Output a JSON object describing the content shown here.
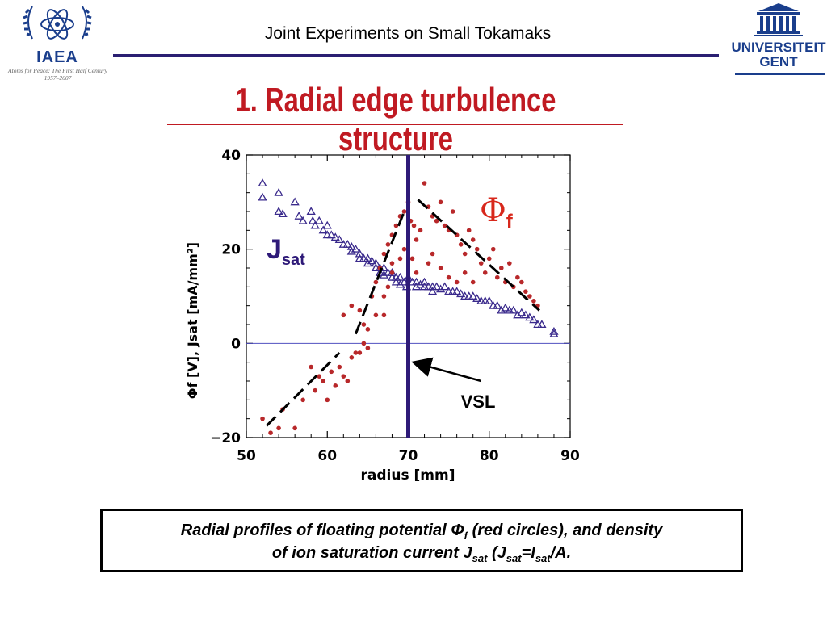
{
  "header": {
    "title": "Joint Experiments on Small Tokamaks",
    "iaea_logo": {
      "text": "IAEA",
      "tagline_line1": "Atoms for Peace: The First Half Century",
      "tagline_line2": "1957–2007",
      "color": "#1a3e8c"
    },
    "ugent_logo": {
      "line1": "UNIVERSITEIT",
      "line2": "GENT",
      "color": "#1a3e8c"
    },
    "rule_color": "#2a1f72"
  },
  "slide": {
    "title": "1. Radial edge turbulence structure",
    "title_color": "#c01a22"
  },
  "caption": {
    "line1_a": "Radial profiles of floating potential Φ",
    "line1_sub": "f",
    "line1_b": " (red circles), and density",
    "line2_a": "of ion saturation current J",
    "line2_sub1": "sat",
    "line2_b": " (J",
    "line2_sub2": "sat",
    "line2_c": "=I",
    "line2_sub3": "sat",
    "line2_d": "/A."
  },
  "chart_data": {
    "type": "scatter",
    "xlabel": "radius [mm]",
    "ylabel": "Φf [V], Jsat [mA/mm²]",
    "xlim": [
      50,
      90
    ],
    "ylim": [
      -20,
      40
    ],
    "xticks": [
      "50",
      "60",
      "70",
      "80",
      "90"
    ],
    "yticks": [
      "−20",
      "0",
      "20",
      "40"
    ],
    "grid": false,
    "zero_line_y": 0,
    "vsl_x": 70,
    "annotations": {
      "phi_label": "Φ",
      "phi_sub": "f",
      "phi_color": "#d8281c",
      "jsat_label": "J",
      "jsat_sub": "sat",
      "jsat_color": "#2e1a78",
      "vsl_label": "VSL",
      "vsl_arrow_tip": [
        70.6,
        -4
      ],
      "vsl_arrow_tail": [
        79,
        -8
      ]
    },
    "fit_lines": [
      {
        "x": [
          52.5,
          61.5
        ],
        "y": [
          -17.5,
          -2
        ]
      },
      {
        "x": [
          63.5,
          69.5
        ],
        "y": [
          2,
          28
        ]
      },
      {
        "x": [
          71.2,
          86.2
        ],
        "y": [
          30.5,
          7
        ]
      }
    ],
    "series": [
      {
        "name": "Jsat",
        "marker": "triangle-open",
        "color": "#3a2a8c",
        "points": [
          [
            52,
            34
          ],
          [
            52,
            31
          ],
          [
            54,
            32
          ],
          [
            54,
            28
          ],
          [
            54.5,
            27.5
          ],
          [
            56,
            30
          ],
          [
            56.5,
            27
          ],
          [
            57,
            26
          ],
          [
            58,
            28
          ],
          [
            58.2,
            26
          ],
          [
            58.5,
            25
          ],
          [
            59,
            26
          ],
          [
            59.5,
            24
          ],
          [
            60,
            25
          ],
          [
            60,
            23
          ],
          [
            60.5,
            23
          ],
          [
            61,
            22.5
          ],
          [
            61.5,
            22
          ],
          [
            62,
            21
          ],
          [
            62.5,
            21
          ],
          [
            63,
            20.5
          ],
          [
            63,
            19.5
          ],
          [
            63.5,
            20
          ],
          [
            64,
            19
          ],
          [
            64,
            18
          ],
          [
            64.5,
            18
          ],
          [
            65,
            18
          ],
          [
            65,
            17
          ],
          [
            65.5,
            17.5
          ],
          [
            66,
            17
          ],
          [
            66,
            16
          ],
          [
            66.5,
            16
          ],
          [
            66.5,
            15
          ],
          [
            67,
            16
          ],
          [
            67,
            14.5
          ],
          [
            67.5,
            15
          ],
          [
            68,
            15
          ],
          [
            68,
            14
          ],
          [
            68.5,
            14
          ],
          [
            68.5,
            13
          ],
          [
            69,
            14
          ],
          [
            69,
            12.5
          ],
          [
            69.5,
            13
          ],
          [
            69.8,
            12
          ],
          [
            70,
            14
          ],
          [
            70.5,
            13
          ],
          [
            71,
            13
          ],
          [
            71,
            12
          ],
          [
            71.5,
            12.5
          ],
          [
            72,
            13
          ],
          [
            72,
            12
          ],
          [
            72.5,
            12
          ],
          [
            73,
            12
          ],
          [
            73,
            11
          ],
          [
            73.5,
            12
          ],
          [
            74,
            11.5
          ],
          [
            74.5,
            12
          ],
          [
            75,
            11
          ],
          [
            75.5,
            11
          ],
          [
            76,
            11
          ],
          [
            76.5,
            10.5
          ],
          [
            77,
            10
          ],
          [
            77.5,
            10
          ],
          [
            78,
            10
          ],
          [
            78.5,
            9.5
          ],
          [
            79,
            9
          ],
          [
            79.5,
            9
          ],
          [
            80,
            9
          ],
          [
            80.5,
            8
          ],
          [
            81,
            8
          ],
          [
            81.5,
            7
          ],
          [
            82,
            7.5
          ],
          [
            82.5,
            7
          ],
          [
            83,
            7
          ],
          [
            83.5,
            6
          ],
          [
            84,
            6.5
          ],
          [
            84.5,
            6
          ],
          [
            85,
            5.5
          ],
          [
            85.5,
            5
          ],
          [
            86,
            4
          ],
          [
            86.5,
            4
          ],
          [
            88,
            2.5
          ],
          [
            88,
            2
          ]
        ]
      },
      {
        "name": "Φf",
        "marker": "circle-filled",
        "color": "#b8282a",
        "points": [
          [
            52,
            -16
          ],
          [
            53,
            -19
          ],
          [
            54,
            -18
          ],
          [
            54.5,
            -14
          ],
          [
            56,
            -18
          ],
          [
            57,
            -12
          ],
          [
            58,
            -5
          ],
          [
            58.5,
            -10
          ],
          [
            59,
            -7
          ],
          [
            59.5,
            -8
          ],
          [
            60,
            -12
          ],
          [
            60.5,
            -6
          ],
          [
            61,
            -9
          ],
          [
            61.5,
            -5
          ],
          [
            62,
            -7
          ],
          [
            62.5,
            -8
          ],
          [
            63,
            -3
          ],
          [
            63.5,
            -2
          ],
          [
            64,
            -2
          ],
          [
            64.5,
            0
          ],
          [
            65,
            -1
          ],
          [
            62,
            6
          ],
          [
            63,
            8
          ],
          [
            64,
            7
          ],
          [
            64.5,
            4
          ],
          [
            65,
            3
          ],
          [
            65.5,
            10
          ],
          [
            66,
            13
          ],
          [
            66.5,
            16
          ],
          [
            67,
            19
          ],
          [
            67.5,
            21
          ],
          [
            68,
            23
          ],
          [
            68.5,
            25
          ],
          [
            69,
            27
          ],
          [
            69.5,
            28
          ],
          [
            70,
            30
          ],
          [
            70.3,
            26
          ],
          [
            70.7,
            25
          ],
          [
            71,
            22
          ],
          [
            71.5,
            24
          ],
          [
            72,
            34
          ],
          [
            72.5,
            29
          ],
          [
            73,
            27
          ],
          [
            73.5,
            26
          ],
          [
            74,
            30
          ],
          [
            74.5,
            25
          ],
          [
            75,
            24
          ],
          [
            75.5,
            28
          ],
          [
            76,
            23
          ],
          [
            76.5,
            21
          ],
          [
            77,
            19
          ],
          [
            77.5,
            24
          ],
          [
            78,
            22
          ],
          [
            78.5,
            20
          ],
          [
            79,
            17
          ],
          [
            79.5,
            15
          ],
          [
            80,
            18
          ],
          [
            80.5,
            20
          ],
          [
            81,
            14
          ],
          [
            81.5,
            16
          ],
          [
            82,
            13
          ],
          [
            82.5,
            17
          ],
          [
            83,
            12
          ],
          [
            83.5,
            14
          ],
          [
            84,
            13
          ],
          [
            84.5,
            11
          ],
          [
            85,
            10
          ],
          [
            85.5,
            9
          ],
          [
            86,
            8
          ],
          [
            67,
            10
          ],
          [
            67.5,
            12
          ],
          [
            68,
            17
          ],
          [
            69,
            18
          ],
          [
            69.5,
            20
          ],
          [
            70.5,
            18
          ],
          [
            71,
            15
          ],
          [
            72.5,
            17
          ],
          [
            73,
            19
          ],
          [
            74,
            16
          ],
          [
            75,
            14
          ],
          [
            76,
            13
          ],
          [
            77,
            15
          ],
          [
            78,
            13
          ],
          [
            66,
            6
          ],
          [
            67,
            6
          ],
          [
            68,
            15
          ]
        ]
      }
    ]
  }
}
